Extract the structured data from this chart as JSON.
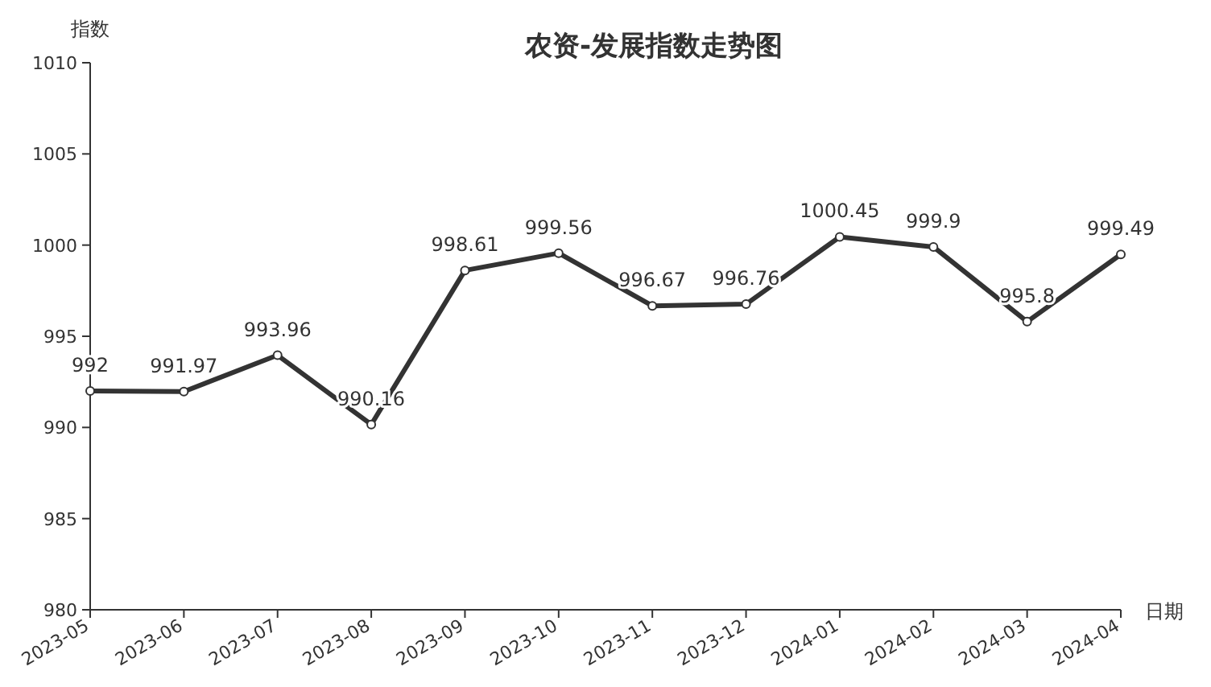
{
  "chart_data": {
    "type": "line",
    "title": "农资-发展指数走势图",
    "ylabel": "指数",
    "xlabel": "日期",
    "categories": [
      "2023-05",
      "2023-06",
      "2023-07",
      "2023-08",
      "2023-09",
      "2023-10",
      "2023-11",
      "2023-12",
      "2024-01",
      "2024-02",
      "2024-03",
      "2024-04"
    ],
    "values": [
      992,
      991.97,
      993.96,
      990.16,
      998.61,
      999.56,
      996.67,
      996.76,
      1000.45,
      999.9,
      995.8,
      999.49
    ],
    "color": "#333333",
    "marker": "circle",
    "data_labels": true,
    "ylim": [
      980,
      1010
    ],
    "yticks": [
      980,
      985,
      990,
      995,
      1000,
      1005,
      1010
    ]
  }
}
